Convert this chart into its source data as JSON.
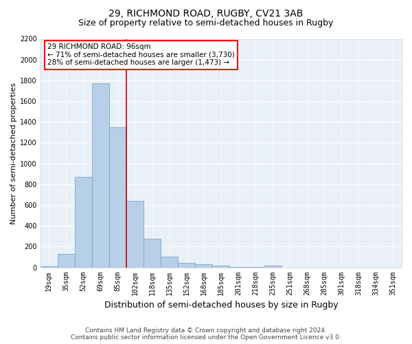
{
  "title1": "29, RICHMOND ROAD, RUGBY, CV21 3AB",
  "title2": "Size of property relative to semi-detached houses in Rugby",
  "xlabel": "Distribution of semi-detached houses by size in Rugby",
  "ylabel": "Number of semi-detached properties",
  "footer1": "Contains HM Land Registry data © Crown copyright and database right 2024.",
  "footer2": "Contains public sector information licensed under the Open Government Licence v3.0.",
  "bar_color": "#b8cfe8",
  "bar_edge_color": "#6a9fc8",
  "background_color": "#eaf0f8",
  "categories": [
    "19sqm",
    "35sqm",
    "52sqm",
    "69sqm",
    "85sqm",
    "102sqm",
    "118sqm",
    "135sqm",
    "152sqm",
    "168sqm",
    "185sqm",
    "201sqm",
    "218sqm",
    "235sqm",
    "251sqm",
    "268sqm",
    "285sqm",
    "301sqm",
    "318sqm",
    "334sqm",
    "351sqm"
  ],
  "values": [
    10,
    130,
    870,
    1770,
    1350,
    640,
    275,
    100,
    45,
    30,
    15,
    5,
    3,
    15,
    0,
    0,
    0,
    0,
    0,
    0,
    0
  ],
  "ylim": [
    0,
    2200
  ],
  "yticks": [
    0,
    200,
    400,
    600,
    800,
    1000,
    1200,
    1400,
    1600,
    1800,
    2000,
    2200
  ],
  "property_label": "29 RICHMOND ROAD: 96sqm",
  "pct_smaller": 71,
  "count_smaller": 3730,
  "pct_larger": 28,
  "count_larger": 1473,
  "vline_x": 4.5,
  "vline_color": "#cc0000",
  "ann_box_color": "red",
  "title1_fontsize": 10,
  "title2_fontsize": 9,
  "ylabel_fontsize": 8,
  "xlabel_fontsize": 9,
  "tick_fontsize": 7,
  "ann_fontsize": 7.5,
  "footer_fontsize": 6.5
}
